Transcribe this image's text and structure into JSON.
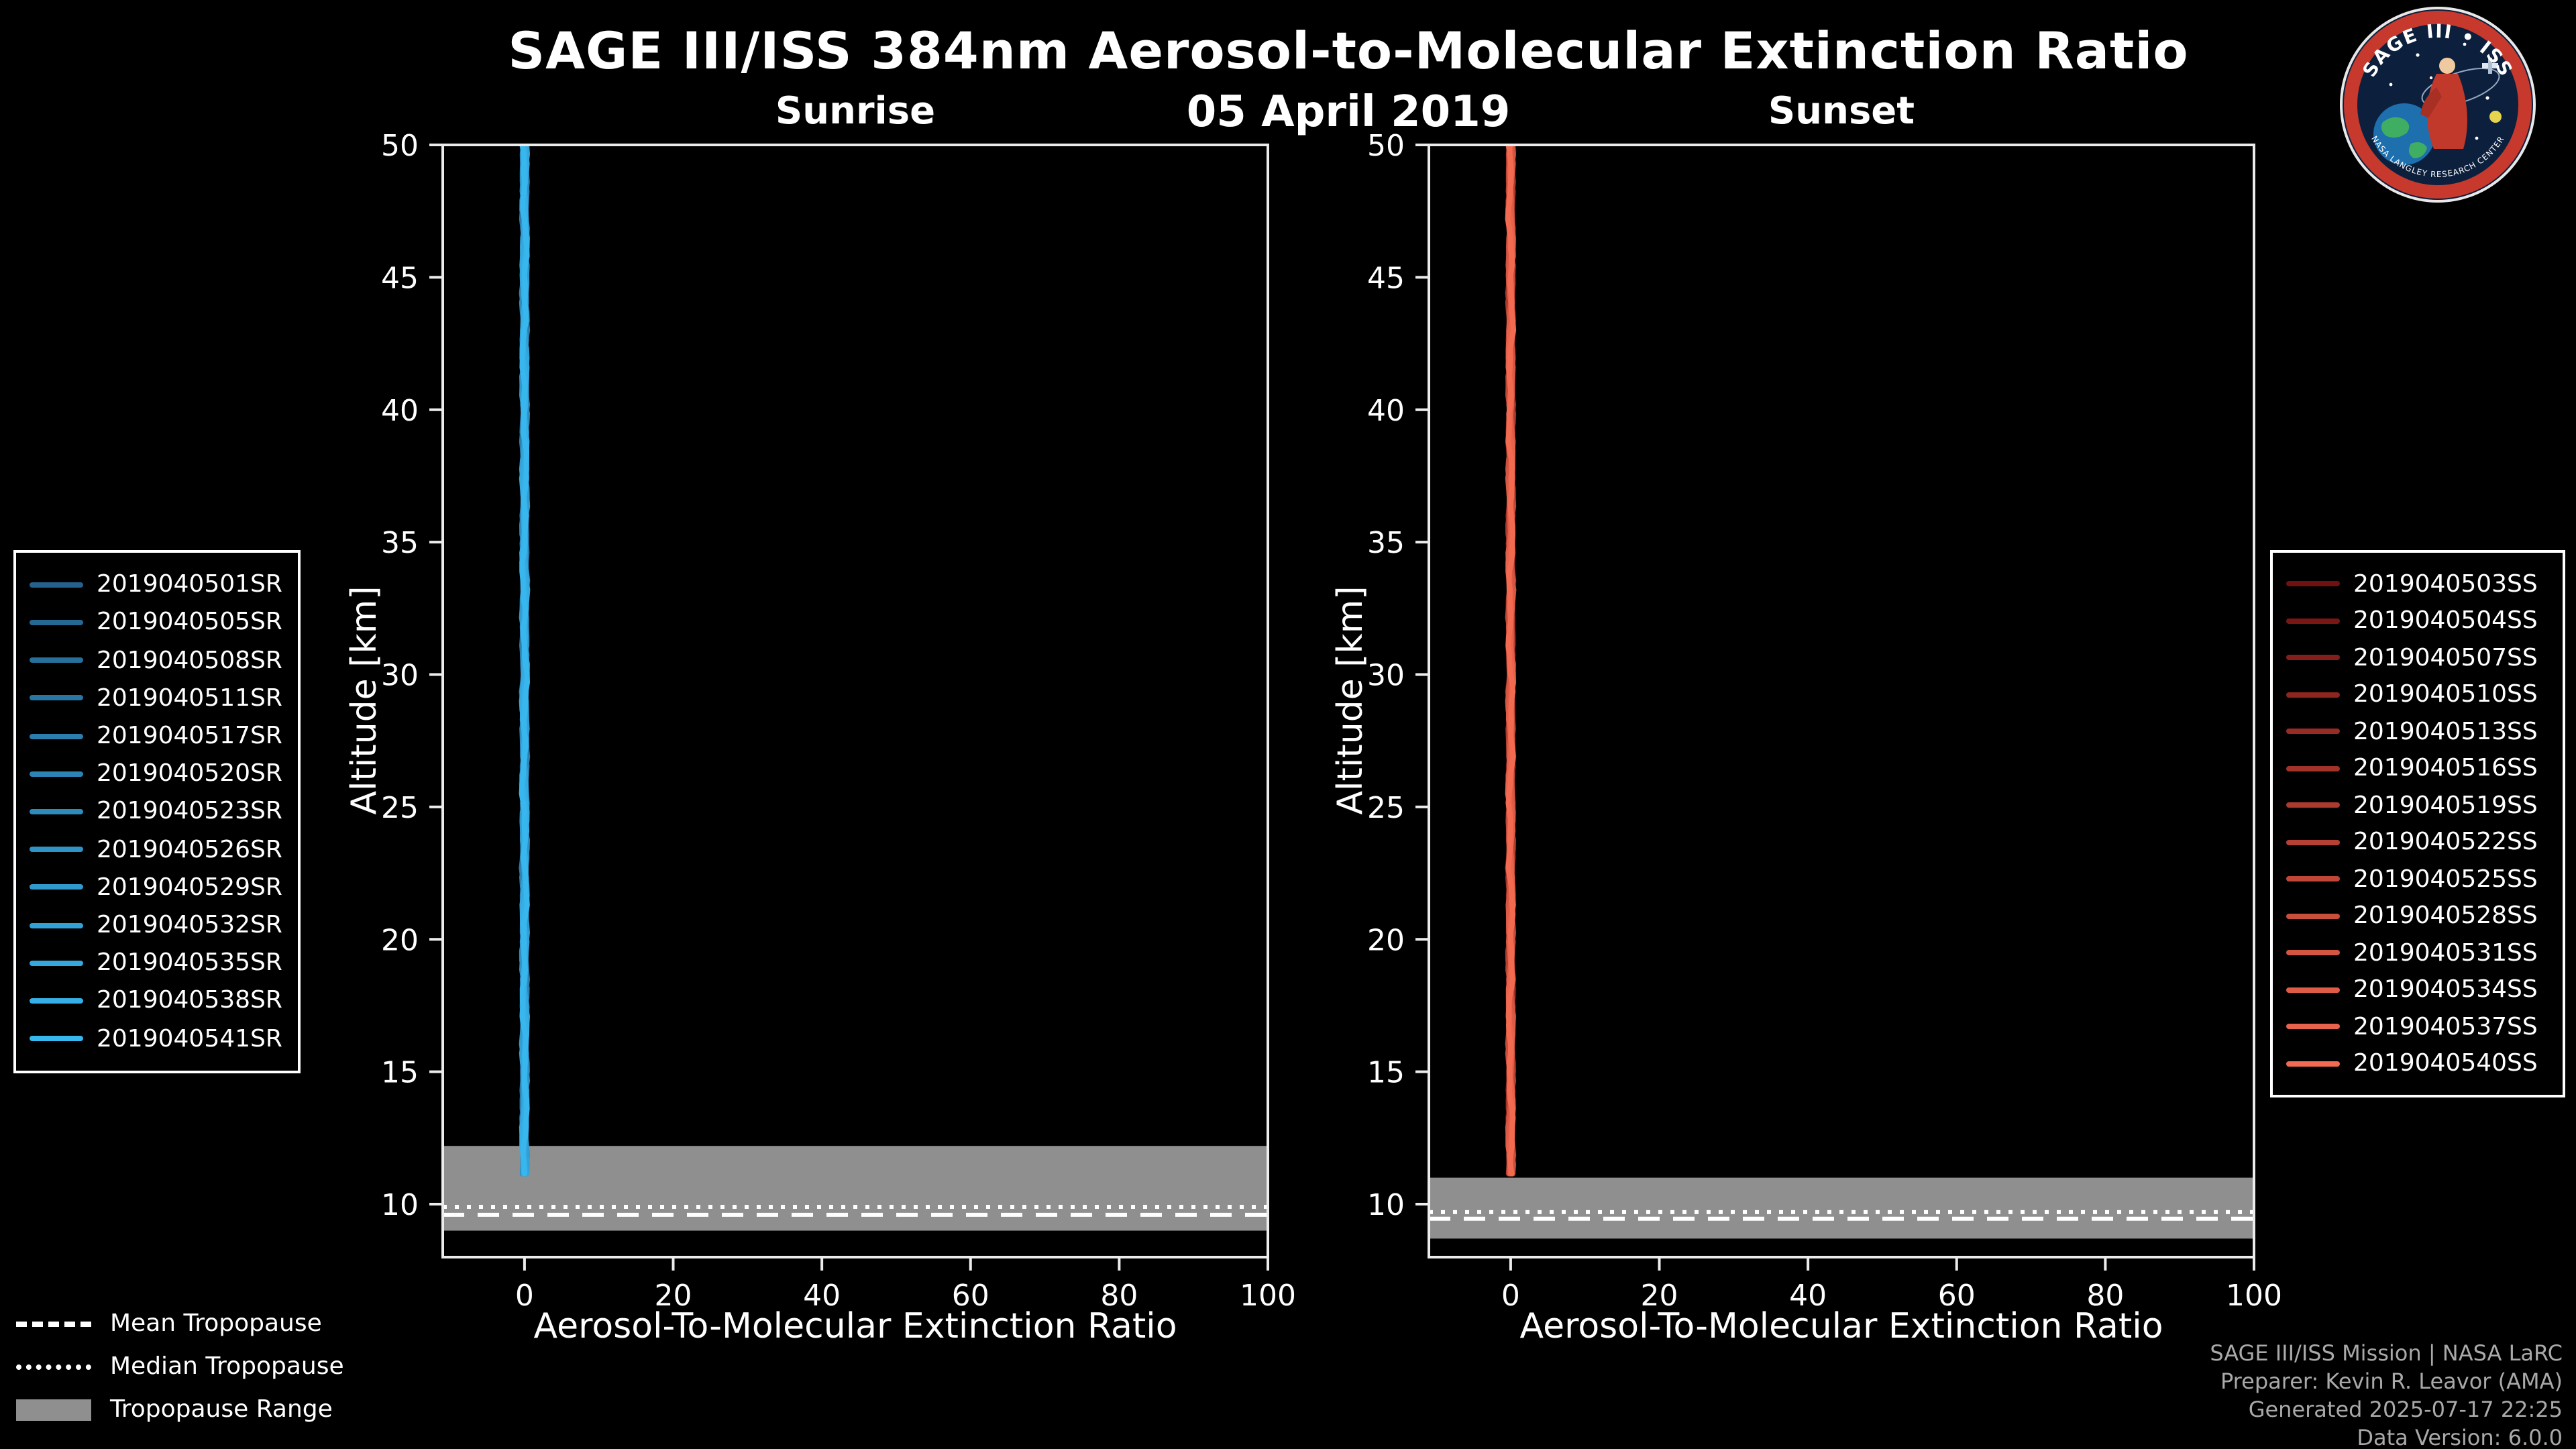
{
  "header": {
    "title": "SAGE III/ISS 384nm Aerosol-to-Molecular Extinction Ratio",
    "date": "05 April 2019"
  },
  "chart_data": [
    {
      "type": "line",
      "title": "Sunrise",
      "xlabel": "Aerosol-To-Molecular Extinction Ratio",
      "ylabel": "Altitude [km]",
      "xlim": [
        -11,
        100
      ],
      "ylim": [
        8,
        50
      ],
      "xticks": [
        0,
        20,
        40,
        60,
        80,
        100
      ],
      "yticks": [
        10,
        15,
        20,
        25,
        30,
        35,
        40,
        45,
        50
      ],
      "grid": false,
      "legend_position": "outside-left",
      "color_ramp": [
        "#24618c",
        "#38b6ee"
      ],
      "series": [
        "2019040501SR",
        "2019040505SR",
        "2019040508SR",
        "2019040511SR",
        "2019040517SR",
        "2019040520SR",
        "2019040523SR",
        "2019040526SR",
        "2019040529SR",
        "2019040532SR",
        "2019040535SR",
        "2019040538SR",
        "2019040541SR"
      ],
      "profile_shape": {
        "ratio_center": 0.0,
        "ratio_jitter": 0.4,
        "altitude_min_km": 11.1,
        "altitude_max_km": 50,
        "note": "All sunrise profiles overlap as a near-vertical line at extinction ratio ~0 from ~11 km to 50 km"
      },
      "tropopause": {
        "mean_km": 9.6,
        "median_km": 9.9,
        "range_km": [
          9.0,
          12.2
        ]
      }
    },
    {
      "type": "line",
      "title": "Sunset",
      "xlabel": "Aerosol-To-Molecular Extinction Ratio",
      "ylabel": "Altitude [km]",
      "xlim": [
        -11,
        100
      ],
      "ylim": [
        8,
        50
      ],
      "xticks": [
        0,
        20,
        40,
        60,
        80,
        100
      ],
      "yticks": [
        10,
        15,
        20,
        25,
        30,
        35,
        40,
        45,
        50
      ],
      "grid": false,
      "legend_position": "outside-right",
      "color_ramp": [
        "#701010",
        "#f26a50"
      ],
      "series": [
        "2019040503SS",
        "2019040504SS",
        "2019040507SS",
        "2019040510SS",
        "2019040513SS",
        "2019040516SS",
        "2019040519SS",
        "2019040522SS",
        "2019040525SS",
        "2019040528SS",
        "2019040531SS",
        "2019040534SS",
        "2019040537SS",
        "2019040540SS"
      ],
      "profile_shape": {
        "ratio_center": 0.0,
        "ratio_jitter": 0.4,
        "altitude_min_km": 11.0,
        "altitude_max_km": 50,
        "note": "All sunset profiles overlap as a near-vertical line at extinction ratio ~0 from ~11 km to 50 km"
      },
      "tropopause": {
        "mean_km": 9.45,
        "median_km": 9.7,
        "range_km": [
          8.7,
          11.0
        ]
      }
    }
  ],
  "tropopause_legend": {
    "items": [
      {
        "label": "Mean Tropopause",
        "style": "dashed"
      },
      {
        "label": "Median Tropopause",
        "style": "dotted"
      },
      {
        "label": "Tropopause Range",
        "style": "filled",
        "color": "#8f8f8f"
      }
    ]
  },
  "credits": {
    "lines": [
      "SAGE III/ISS Mission | NASA LaRC",
      "Preparer: Kevin R. Leavor (AMA)",
      "Generated 2025-07-17 22:25",
      "Data Version: 6.0.0"
    ]
  },
  "logo": {
    "title": "SAGE III • ISS",
    "ring_text": "NASA LANGLEY RESEARCH CENTER"
  },
  "colors": {
    "background": "#000000",
    "axis": "#ececec",
    "tropopause_band": "#8f8f8f",
    "tropopause_lines": "#ffffff",
    "credits_text": "#a9a9a9"
  }
}
